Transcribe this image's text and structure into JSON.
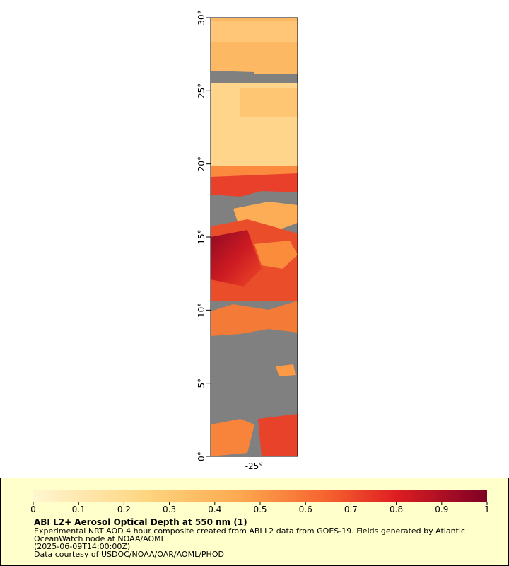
{
  "map": {
    "ylim": [
      0,
      30
    ],
    "yticks": [
      {
        "value": 0,
        "label": "0°"
      },
      {
        "value": 5,
        "label": "5°"
      },
      {
        "value": 10,
        "label": "10°"
      },
      {
        "value": 15,
        "label": "15°"
      },
      {
        "value": 20,
        "label": "20°"
      },
      {
        "value": 25,
        "label": "25°"
      },
      {
        "value": 30,
        "label": "30°"
      }
    ],
    "xlim": [
      -28,
      -22
    ],
    "xticks": [
      {
        "value": -25,
        "label": "-25°"
      }
    ]
  },
  "legend": {
    "lim": [
      0,
      1
    ],
    "ticks": [
      0,
      0.1,
      0.2,
      0.3,
      0.4,
      0.5,
      0.6,
      0.7,
      0.8,
      0.9,
      1
    ],
    "title": "ABI L2+ Aerosol Optical Depth at 550 nm (1)",
    "lines": [
      "Experimental NRT AOD 4 hour composite created from ABI L2 data from GOES-19. Fields generated by Atlantic",
      "OceanWatch node at NOAA/AOML",
      "(2025-06-09T14:00:00Z)",
      "Data courtesy of USDOC/NOAA/OAR/AOML/PHOD"
    ]
  }
}
